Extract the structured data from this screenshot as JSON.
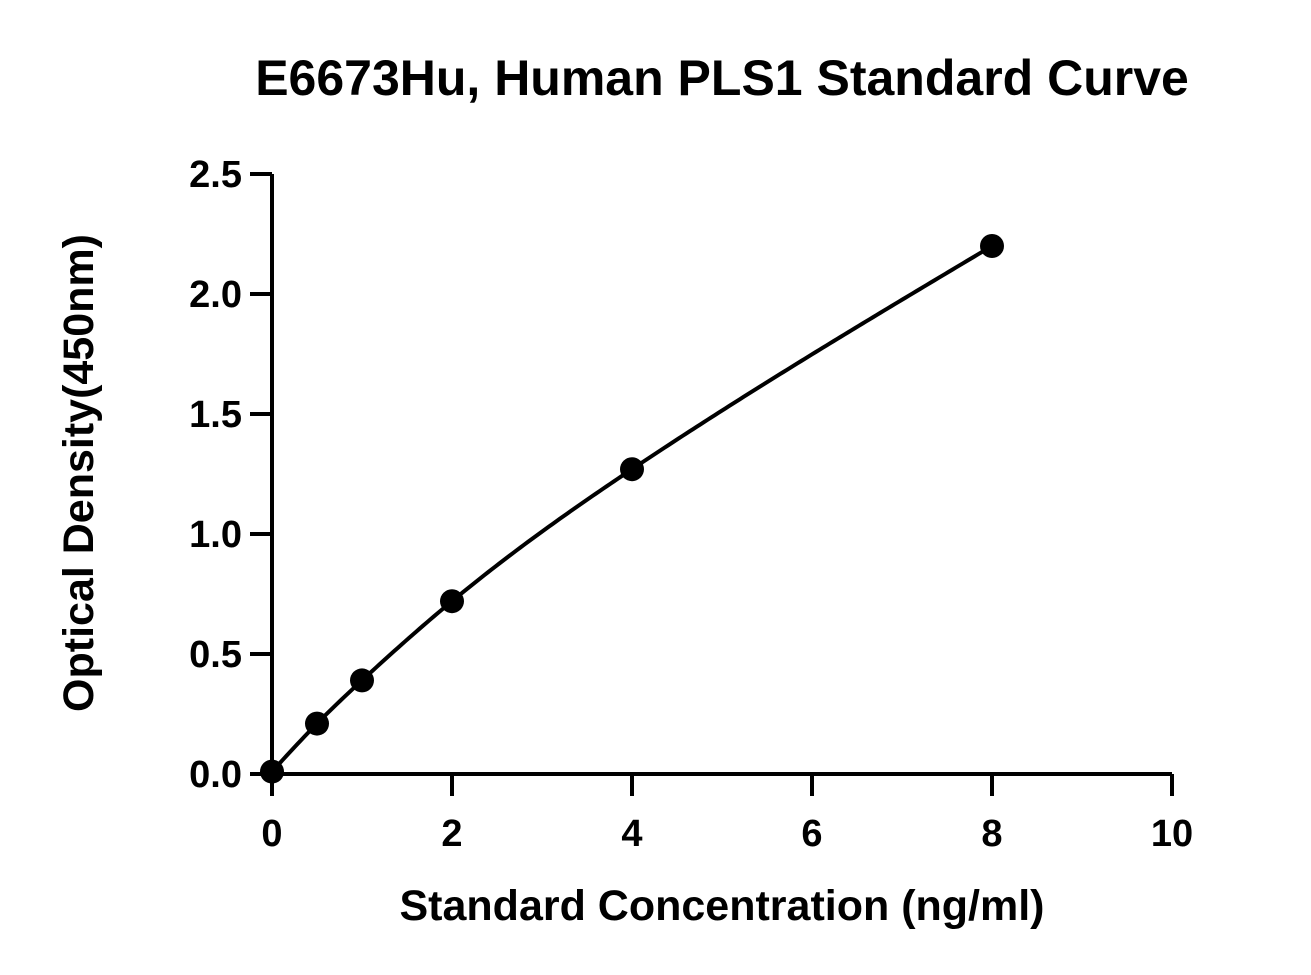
{
  "chart_data": {
    "type": "scatter",
    "title": "E6673Hu, Human PLS1 Standard Curve",
    "xlabel": "Standard Concentration (ng/ml)",
    "ylabel": "Optical Density(450nm)",
    "xlim": [
      0,
      10
    ],
    "ylim": [
      0,
      2.5
    ],
    "x_ticks": [
      "0",
      "2",
      "4",
      "6",
      "8",
      "10"
    ],
    "y_ticks": [
      "0.0",
      "0.5",
      "1.0",
      "1.5",
      "2.0",
      "2.5"
    ],
    "grid": false,
    "legend": "none",
    "series": [
      {
        "x": [
          0,
          0.5,
          1,
          2,
          4,
          8
        ],
        "y": [
          0.01,
          0.21,
          0.39,
          0.72,
          1.27,
          2.2
        ],
        "fit_curve": true
      }
    ],
    "colors": {
      "marker": "#000000",
      "line": "#000000"
    }
  }
}
